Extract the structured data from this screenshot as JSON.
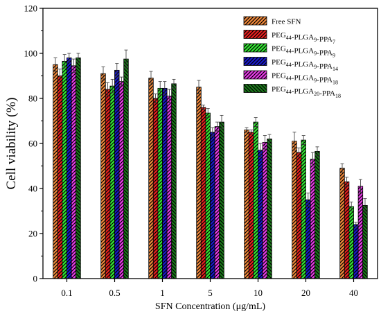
{
  "chart_data": {
    "type": "bar",
    "title": "",
    "xlabel": "SFN Concentration (μg/mL)",
    "ylabel": "Cell viability (%)",
    "ylim": [
      0,
      120
    ],
    "yticks": [
      0,
      20,
      40,
      60,
      80,
      100,
      120
    ],
    "categories": [
      "0.1",
      "0.5",
      "1",
      "5",
      "10",
      "20",
      "40"
    ],
    "legend_position": "top-right",
    "grid": false,
    "series": [
      {
        "name": "Free SFN",
        "subscripts": [],
        "color": "#f0883a",
        "hatch": "forward",
        "values": [
          95,
          91,
          89,
          85,
          66,
          61,
          49
        ],
        "errors": [
          3,
          3,
          3,
          3,
          1,
          4,
          2
        ]
      },
      {
        "name": "PEG44-PLGA9-PPA7",
        "subscripts": [
          "44",
          "9",
          "7"
        ],
        "color": "#e82020",
        "hatch": "forward",
        "values": [
          90,
          84,
          80,
          76,
          65,
          56,
          43
        ],
        "errors": [
          3,
          3,
          2,
          1,
          1,
          2,
          2
        ]
      },
      {
        "name": "PEG44-PLGA9-PPA9",
        "subscripts": [
          "44",
          "9",
          "9"
        ],
        "color": "#33e833",
        "hatch": "forward",
        "values": [
          96.5,
          85.5,
          84.5,
          73.5,
          69.5,
          61.5,
          32
        ],
        "errors": [
          3,
          3,
          3,
          2,
          2,
          2,
          2
        ]
      },
      {
        "name": "PEG44-PLGA9-PPA14",
        "subscripts": [
          "44",
          "9",
          "14"
        ],
        "color": "#1a1acc",
        "hatch": "forward",
        "values": [
          98,
          92.5,
          84.5,
          65,
          57,
          35,
          24
        ],
        "errors": [
          2,
          3,
          3,
          2,
          3,
          3,
          1
        ]
      },
      {
        "name": "PEG44-PLGA9-PPA18",
        "subscripts": [
          "44",
          "9",
          "18"
        ],
        "color": "#e83ae8",
        "hatch": "forward",
        "values": [
          94.5,
          87.5,
          81,
          67.5,
          60.5,
          53,
          41
        ],
        "errors": [
          3,
          2,
          3,
          2,
          3,
          3,
          3
        ]
      },
      {
        "name": "PEG44-PLGA20-PPA18",
        "subscripts": [
          "44",
          "20",
          "18"
        ],
        "color": "#1a7a1a",
        "hatch": "backward",
        "values": [
          98,
          97.5,
          86.5,
          69.5,
          62,
          56.5,
          32.5
        ],
        "errors": [
          2,
          4,
          2,
          3,
          2,
          2,
          3
        ]
      }
    ]
  }
}
